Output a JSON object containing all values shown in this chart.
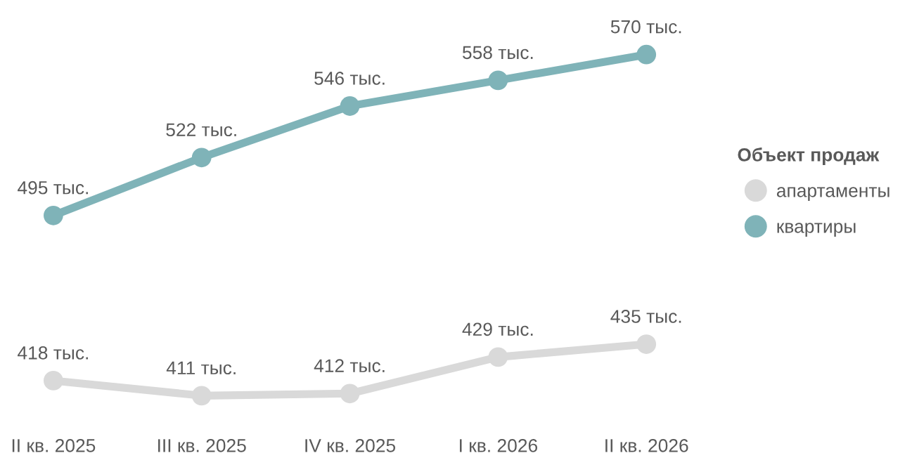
{
  "chart_data": {
    "type": "line",
    "categories": [
      "II кв. 2025",
      "III кв. 2025",
      "IV кв. 2025",
      "I кв. 2026",
      "II кв. 2026"
    ],
    "legend_title": "Объект продаж",
    "legend": "right",
    "marker": "circle",
    "line_style": "solid",
    "grid": false,
    "tick_labels": "x",
    "series": [
      {
        "name": "апартаменты",
        "color": "#d9d9d9",
        "values": [
          418,
          411,
          412,
          429,
          435
        ],
        "value_labels": [
          "418 тыс.",
          "411 тыс.",
          "412 тыс.",
          "429 тыс.",
          "435 тыс."
        ]
      },
      {
        "name": "квартиры",
        "color": "#7fb3b8",
        "values": [
          495,
          522,
          546,
          558,
          570
        ],
        "value_labels": [
          "495 тыс.",
          "522 тыс.",
          "546 тыс.",
          "558 тыс.",
          "570 тыс."
        ]
      }
    ]
  }
}
